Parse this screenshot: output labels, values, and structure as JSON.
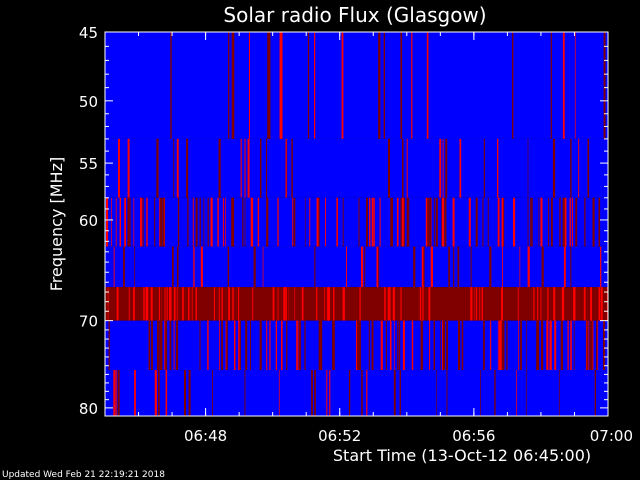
{
  "chart_data": {
    "type": "heatmap",
    "title": "Solar radio Flux (Glasgow)",
    "xlabel": "Start Time (13-Oct-12 06:45:00)",
    "ylabel": "Frequency [MHz]",
    "x_unit": "time of day",
    "x_range": [
      "06:45",
      "07:00"
    ],
    "x_ticks": [
      "06:48",
      "06:52",
      "06:56",
      "07:00"
    ],
    "y_range": [
      45,
      81
    ],
    "y_ticks": [
      45,
      50,
      55,
      60,
      70,
      80
    ],
    "y_scale": "log",
    "y_inverted": true,
    "colormap": [
      "#0000ff",
      "#800000",
      "#ff0000"
    ],
    "bands": [
      {
        "f_top": 45,
        "f_bottom": 53,
        "level": "low"
      },
      {
        "f_top": 53,
        "f_bottom": 58,
        "level": "low"
      },
      {
        "f_top": 58,
        "f_bottom": 62.5,
        "level": "mixed"
      },
      {
        "f_top": 62.5,
        "f_bottom": 66.5,
        "level": "low"
      },
      {
        "f_top": 66.5,
        "f_bottom": 70,
        "level": "high"
      },
      {
        "f_top": 70,
        "f_bottom": 75.5,
        "level": "mixed"
      },
      {
        "f_top": 75.5,
        "f_bottom": 81,
        "level": "low"
      }
    ],
    "notable_bursts": [
      {
        "time": "06:50:15",
        "f_low": 45,
        "f_high": 53
      },
      {
        "time": "06:51:40",
        "f_low": 66.5,
        "f_high": 70
      }
    ]
  },
  "footer": "Updated Wed Feb 21 22:19:21 2018"
}
